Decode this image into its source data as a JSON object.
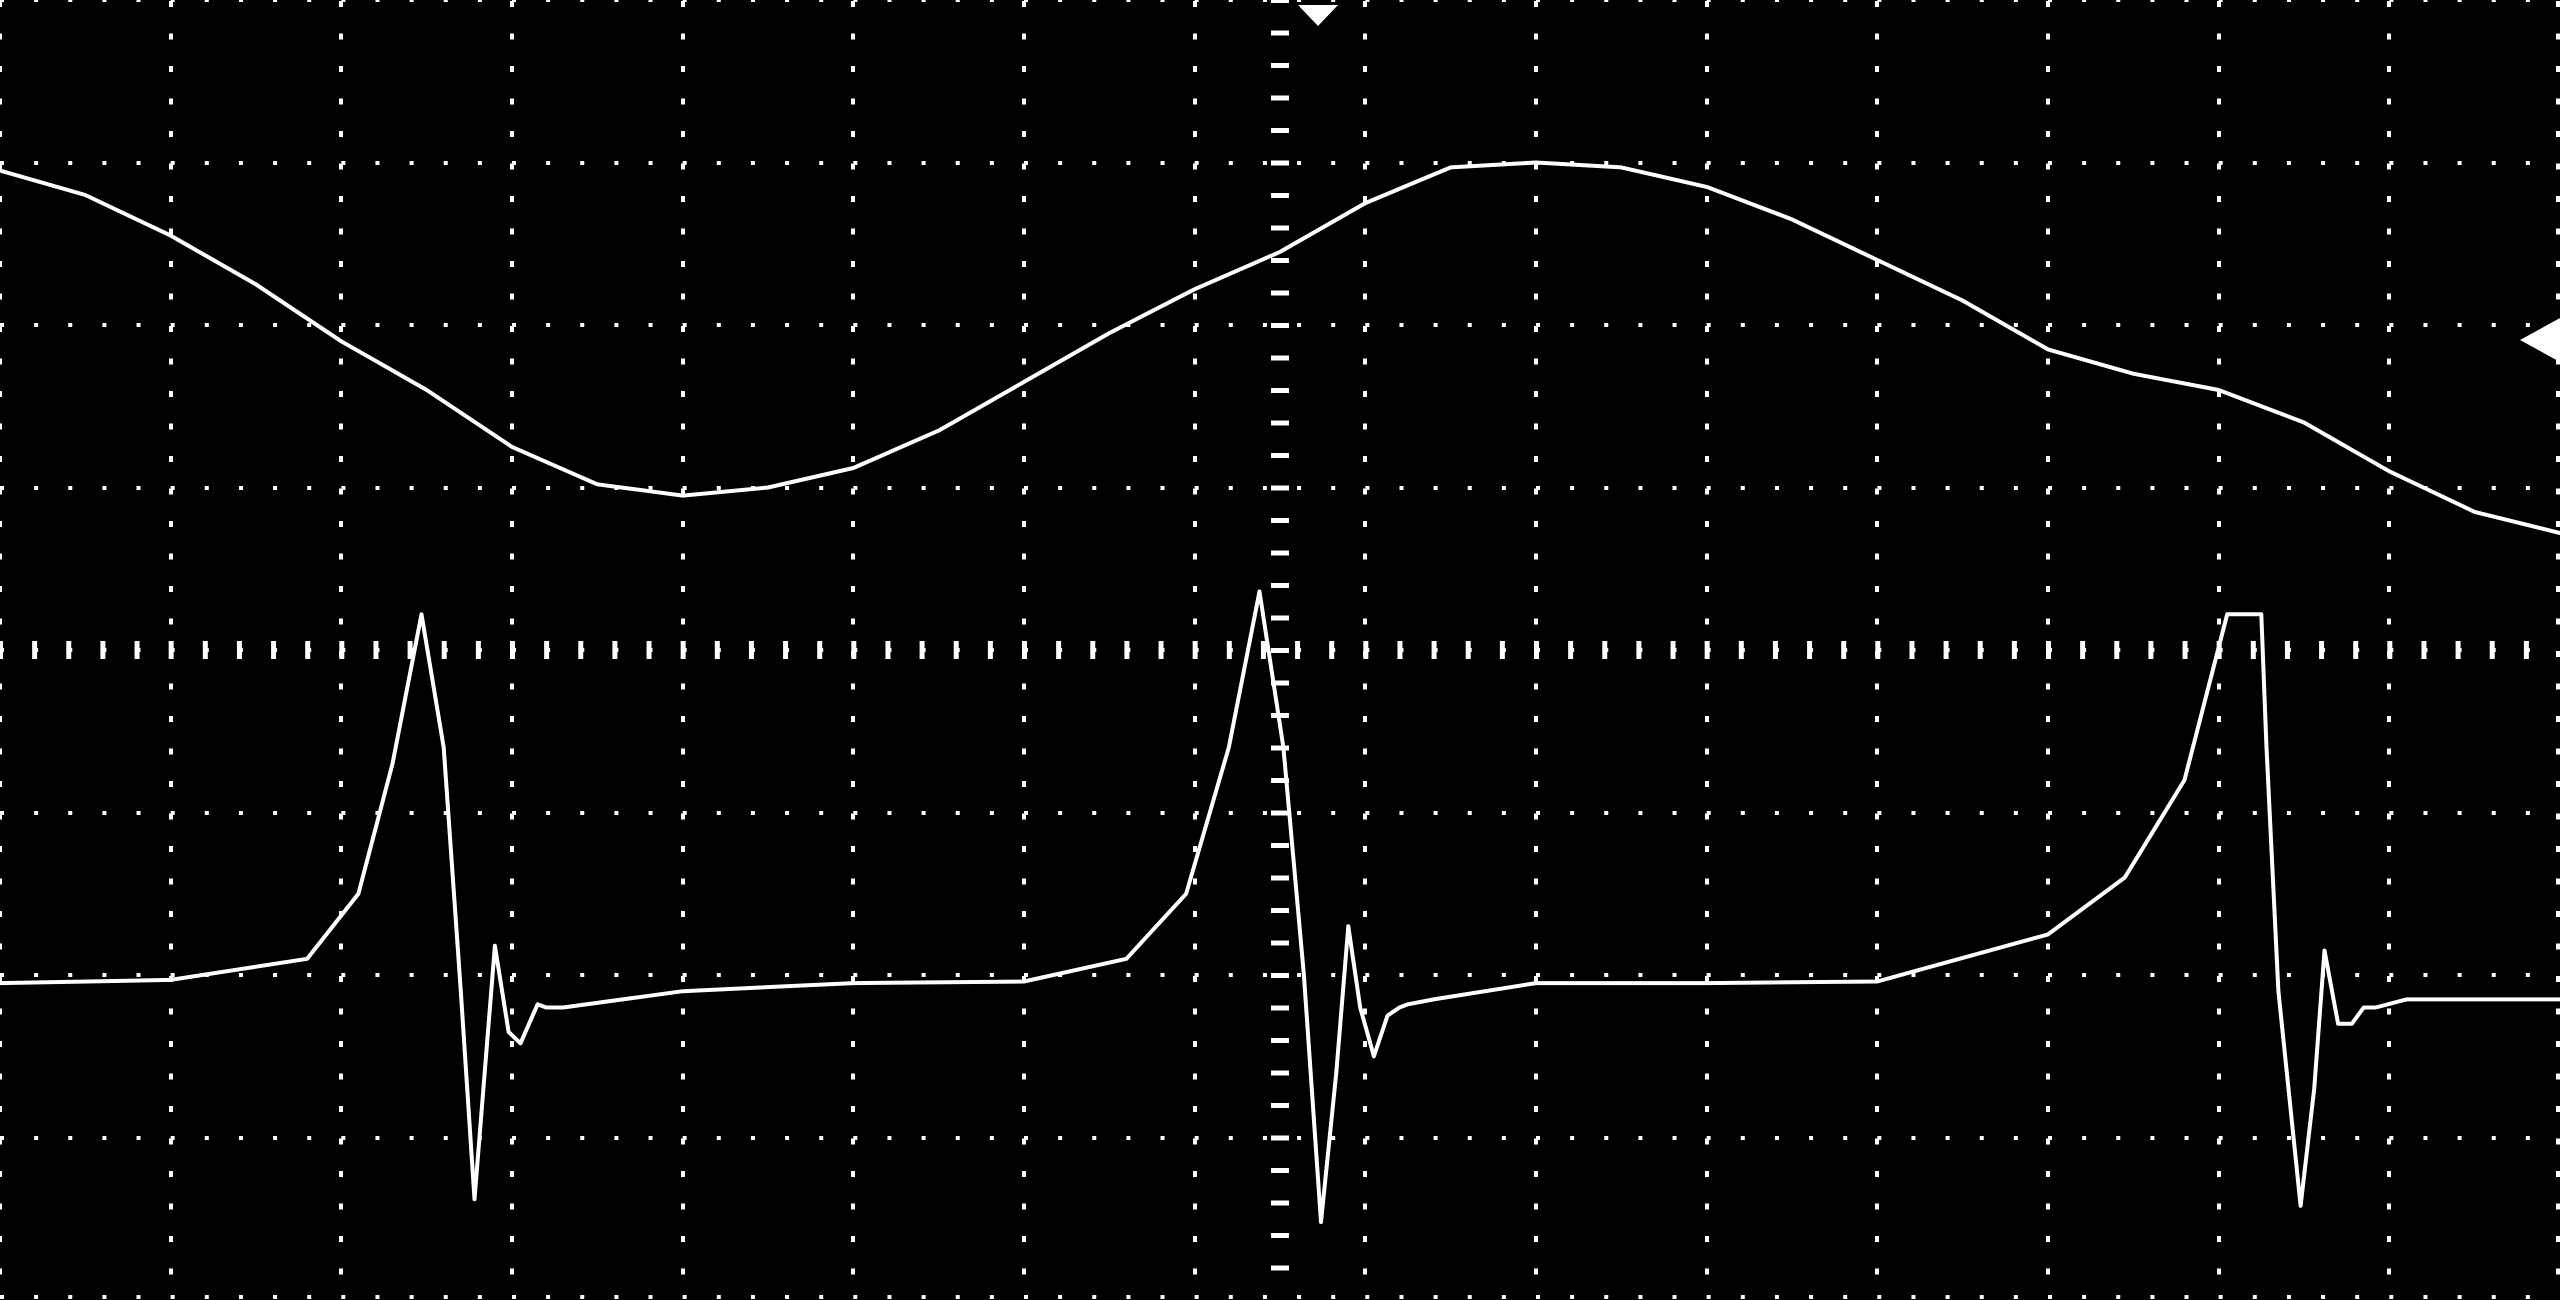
{
  "screen": {
    "background": "#000000",
    "trace_color": "#ffffff",
    "grid_color": "#ffffff",
    "divisions": {
      "horizontal": 15,
      "vertical": 8
    }
  },
  "markers": {
    "trigger_position": "top-center",
    "channel_reference": "right-edge"
  },
  "chart_data": {
    "type": "line",
    "title": "",
    "xlabel": "",
    "ylabel": "",
    "grid": true,
    "xlim": [
      0,
      15
    ],
    "ylim": [
      -4,
      4
    ],
    "series": [
      {
        "channel": 1,
        "color": "#ffffff",
        "x": [
          0,
          0.5,
          1,
          1.5,
          2,
          2.5,
          3,
          3.5,
          4,
          4.5,
          5,
          5.5,
          6,
          6.5,
          7,
          7.5,
          8,
          8.5,
          9,
          9.5,
          10,
          10.5,
          11,
          11.5,
          12,
          12.5,
          13,
          13.5,
          14,
          14.5,
          15
        ],
        "y": [
          2.95,
          2.8,
          2.55,
          2.25,
          1.9,
          1.6,
          1.25,
          1.02,
          0.95,
          1.0,
          1.12,
          1.35,
          1.65,
          1.95,
          2.22,
          2.45,
          2.75,
          2.97,
          3.0,
          2.97,
          2.85,
          2.65,
          2.4,
          2.15,
          1.85,
          1.7,
          1.6,
          1.4,
          1.1,
          0.85,
          0.72
        ]
      },
      {
        "channel": 2,
        "color": "#ffffff",
        "x": [
          0,
          1,
          1.8,
          2.1,
          2.3,
          2.47,
          2.6,
          2.7,
          2.78,
          2.84,
          2.9,
          2.98,
          3.05,
          3.15,
          3.2,
          3.3,
          4,
          5,
          6,
          6.6,
          6.95,
          7.2,
          7.38,
          7.52,
          7.64,
          7.74,
          7.83,
          7.9,
          7.97,
          8.05,
          8.13,
          8.2,
          8.25,
          8.4,
          9,
          10,
          11,
          12,
          12.45,
          12.8,
          13.05,
          13.25,
          13.28,
          13.35,
          13.48,
          13.56,
          13.62,
          13.7,
          13.78,
          13.85,
          13.92,
          14.1,
          15
        ],
        "y": [
          -2.05,
          -2.03,
          -1.9,
          -1.5,
          -0.7,
          0.22,
          -0.6,
          -2.1,
          -3.38,
          -2.6,
          -1.82,
          -2.35,
          -2.42,
          -2.18,
          -2.2,
          -2.2,
          -2.1,
          -2.05,
          -2.04,
          -1.9,
          -1.5,
          -0.6,
          0.36,
          -0.6,
          -2.0,
          -3.52,
          -2.6,
          -1.7,
          -2.2,
          -2.5,
          -2.25,
          -2.2,
          -2.18,
          -2.15,
          -2.05,
          -2.05,
          -2.04,
          -1.75,
          -1.4,
          -0.8,
          0.22,
          0.22,
          -0.6,
          -2.1,
          -3.42,
          -2.7,
          -1.85,
          -2.3,
          -2.3,
          -2.2,
          -2.2,
          -2.15,
          -2.15
        ]
      }
    ]
  }
}
